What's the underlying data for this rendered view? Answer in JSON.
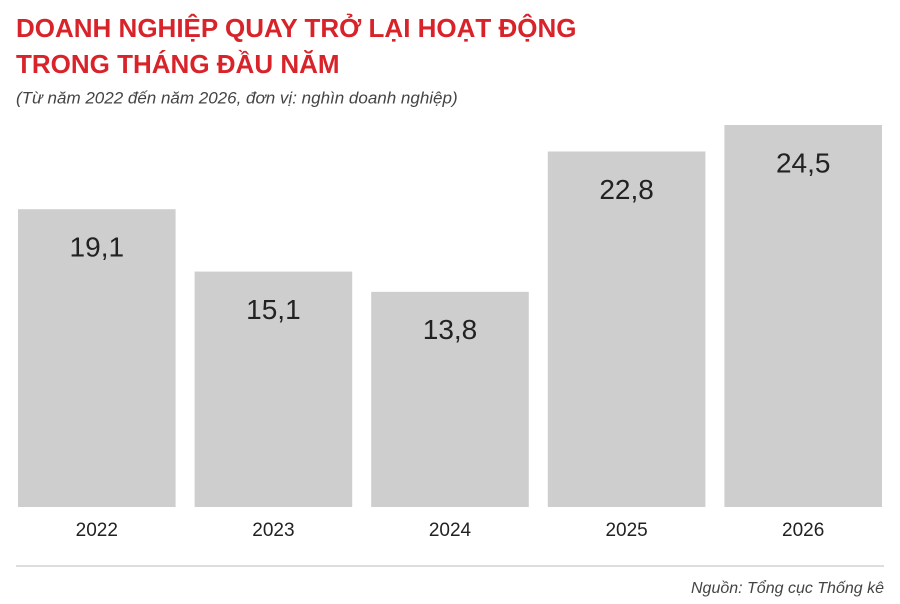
{
  "chart_data": {
    "type": "bar",
    "title": [
      "DOANH NGHIỆP QUAY TRỞ LẠI HOẠT ĐỘNG",
      "TRONG THÁNG ĐẦU NĂM"
    ],
    "subtitle": "(Từ năm 2022 đến năm 2026, đơn vị: nghìn doanh nghiệp)",
    "categories": [
      "2022",
      "2023",
      "2024",
      "2025",
      "2026"
    ],
    "values": [
      19.1,
      15.1,
      13.8,
      22.8,
      24.5
    ],
    "value_labels": [
      "19,1",
      "15,1",
      "13,8",
      "22,8",
      "24,5"
    ],
    "color": "#cfcecf",
    "source": "Nguồn: Tổng cục Thống kê"
  }
}
